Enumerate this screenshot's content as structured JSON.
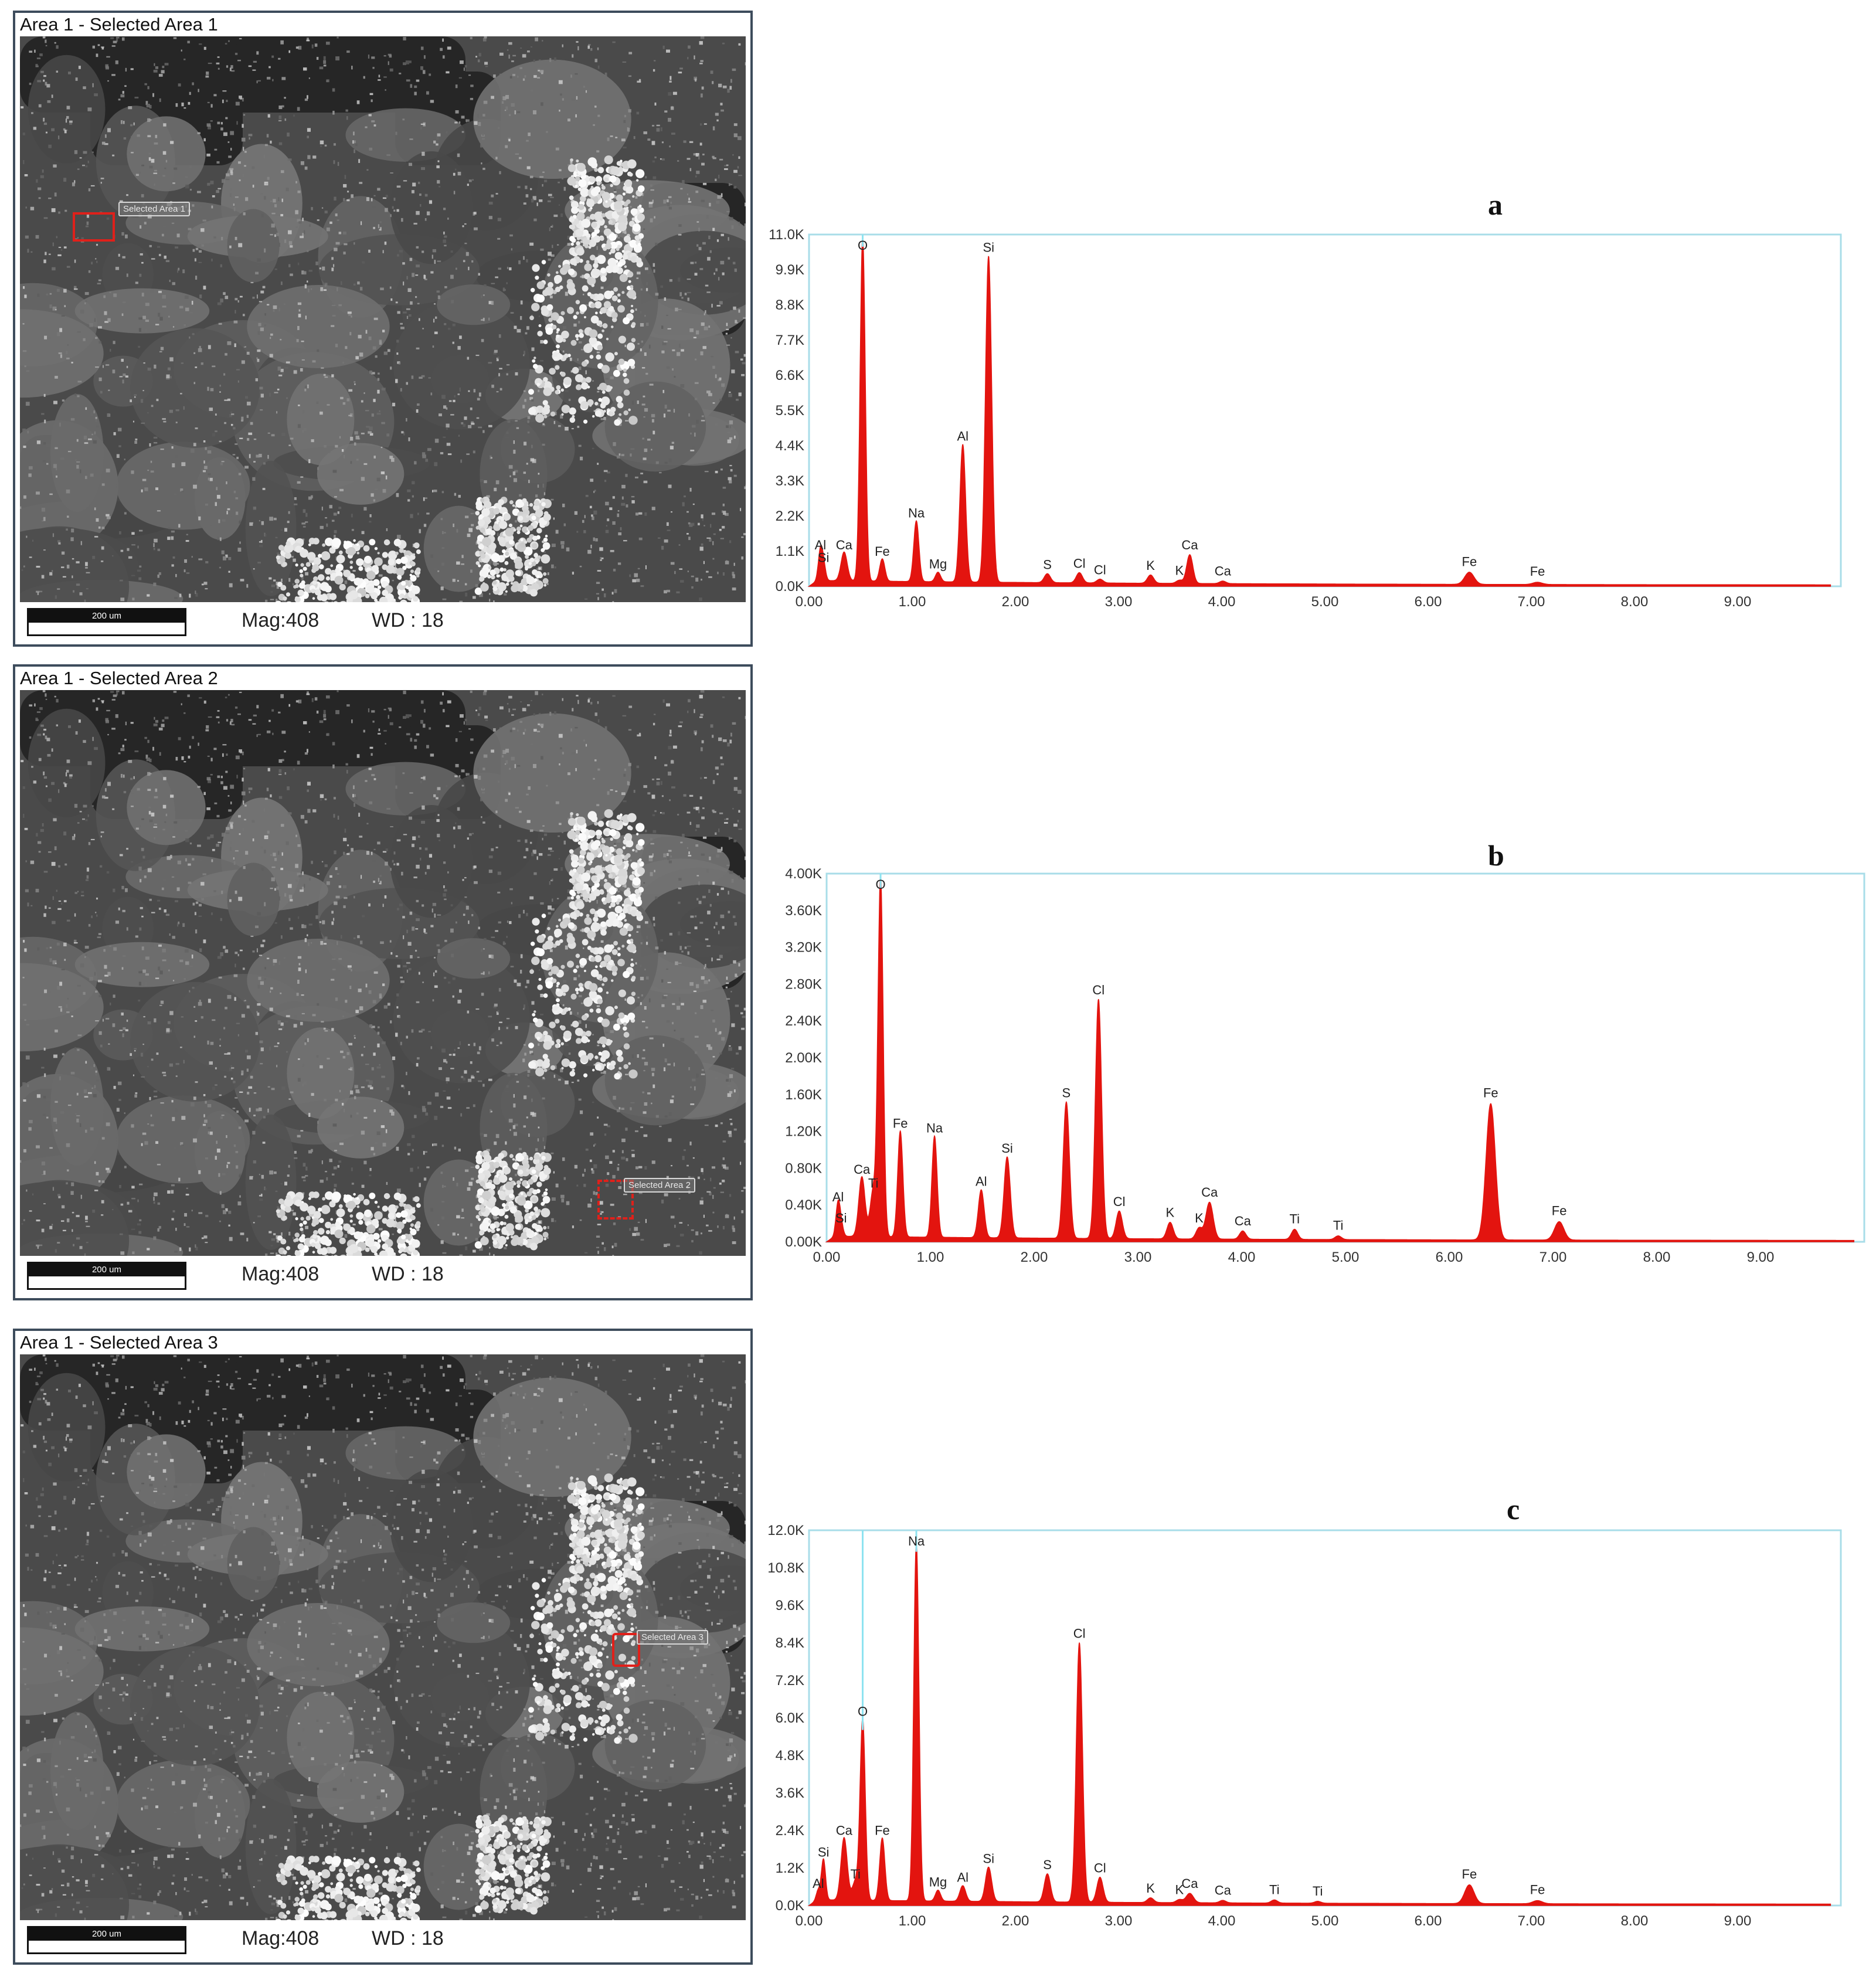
{
  "panels": [
    {
      "sem": {
        "title": "Area 1 - Selected Area 1",
        "scale_label": "200 um",
        "mag": "Mag:408",
        "wd": "WD : 18",
        "selection_label": "Selected Area 1"
      },
      "letter": "a"
    },
    {
      "sem": {
        "title": "Area 1 - Selected Area 2",
        "scale_label": "200 um",
        "mag": "Mag:408",
        "wd": "WD : 18",
        "selection_label": "Selected Area 2"
      },
      "letter": "b"
    },
    {
      "sem": {
        "title": "Area 1 - Selected Area 3",
        "scale_label": "200 um",
        "mag": "Mag:408",
        "wd": "WD : 18",
        "selection_label": "Selected Area 3"
      },
      "letter": "c"
    }
  ],
  "colors": {
    "spectrum_fill": "#e3140f",
    "marker_line": "#8ee3f0",
    "axis_border": "#a8dde8",
    "panel_border": "#3d4c5c"
  },
  "chart_data": [
    {
      "type": "area",
      "title": "a",
      "x_ticks": [
        "0.00",
        "1.00",
        "2.00",
        "3.00",
        "4.00",
        "5.00",
        "6.00",
        "7.00",
        "8.00",
        "9.00"
      ],
      "y_ticks": [
        "0.0K",
        "1.1K",
        "2.2K",
        "3.3K",
        "4.4K",
        "5.5K",
        "6.6K",
        "7.7K",
        "8.8K",
        "9.9K",
        "11.0K"
      ],
      "xlim": [
        0,
        10
      ],
      "ylim": [
        0,
        11000
      ],
      "baseline": 150,
      "peaks": [
        {
          "label": "O",
          "x": 0.52,
          "y": 10800,
          "w": 0.025,
          "line": true
        },
        {
          "label": "Si",
          "x": 1.74,
          "y": 10200,
          "w": 0.03
        },
        {
          "label": "Al",
          "x": 1.49,
          "y": 4300,
          "w": 0.028
        },
        {
          "label": "Na",
          "x": 1.04,
          "y": 1900,
          "w": 0.025
        },
        {
          "label": "Al",
          "x": 0.11,
          "y": 900,
          "w": 0.02
        },
        {
          "label": "Si",
          "x": 0.14,
          "y": 500,
          "w": 0.02
        },
        {
          "label": "Ca",
          "x": 0.34,
          "y": 900,
          "w": 0.03
        },
        {
          "label": "Fe",
          "x": 0.71,
          "y": 700,
          "w": 0.025
        },
        {
          "label": "Mg",
          "x": 1.25,
          "y": 300,
          "w": 0.025
        },
        {
          "label": "S",
          "x": 2.31,
          "y": 280,
          "w": 0.03
        },
        {
          "label": "Cl",
          "x": 2.62,
          "y": 320,
          "w": 0.03
        },
        {
          "label": "Cl",
          "x": 2.82,
          "y": 120,
          "w": 0.03
        },
        {
          "label": "K",
          "x": 3.31,
          "y": 260,
          "w": 0.03
        },
        {
          "label": "Ca",
          "x": 3.69,
          "y": 900,
          "w": 0.03
        },
        {
          "label": "K",
          "x": 3.59,
          "y": 100,
          "w": 0.03
        },
        {
          "label": "Ca",
          "x": 4.01,
          "y": 80,
          "w": 0.03
        },
        {
          "label": "Fe",
          "x": 6.4,
          "y": 380,
          "w": 0.045
        },
        {
          "label": "Fe",
          "x": 7.06,
          "y": 70,
          "w": 0.045
        }
      ]
    },
    {
      "type": "area",
      "title": "b",
      "x_ticks": [
        "0.00",
        "1.00",
        "2.00",
        "3.00",
        "4.00",
        "5.00",
        "6.00",
        "7.00",
        "8.00",
        "9.00"
      ],
      "y_ticks": [
        "0.00K",
        "0.40K",
        "0.80K",
        "1.20K",
        "1.60K",
        "2.00K",
        "2.40K",
        "2.80K",
        "3.20K",
        "3.60K",
        "4.00K"
      ],
      "xlim": [
        0,
        10
      ],
      "ylim": [
        0,
        4000
      ],
      "baseline": 50,
      "peaks": [
        {
          "label": "O",
          "x": 0.52,
          "y": 3900,
          "w": 0.025,
          "line": true
        },
        {
          "label": "Cl",
          "x": 2.62,
          "y": 2600,
          "w": 0.03
        },
        {
          "label": "S",
          "x": 2.31,
          "y": 1480,
          "w": 0.03
        },
        {
          "label": "Fe",
          "x": 6.4,
          "y": 1480,
          "w": 0.045
        },
        {
          "label": "Fe",
          "x": 0.71,
          "y": 1150,
          "w": 0.025
        },
        {
          "label": "Na",
          "x": 1.04,
          "y": 1100,
          "w": 0.025
        },
        {
          "label": "Si",
          "x": 1.74,
          "y": 880,
          "w": 0.03
        },
        {
          "label": "Al",
          "x": 1.49,
          "y": 520,
          "w": 0.028
        },
        {
          "label": "Al",
          "x": 0.11,
          "y": 350,
          "w": 0.02
        },
        {
          "label": "Si",
          "x": 0.14,
          "y": 120,
          "w": 0.02
        },
        {
          "label": "Ca",
          "x": 0.34,
          "y": 650,
          "w": 0.03
        },
        {
          "label": "Ti",
          "x": 0.45,
          "y": 500,
          "w": 0.03
        },
        {
          "label": "Cl",
          "x": 2.82,
          "y": 300,
          "w": 0.03
        },
        {
          "label": "K",
          "x": 3.31,
          "y": 180,
          "w": 0.03
        },
        {
          "label": "Ca",
          "x": 3.69,
          "y": 400,
          "w": 0.035
        },
        {
          "label": "K",
          "x": 3.59,
          "y": 120,
          "w": 0.03
        },
        {
          "label": "Ca",
          "x": 4.01,
          "y": 90,
          "w": 0.03
        },
        {
          "label": "Ti",
          "x": 4.51,
          "y": 110,
          "w": 0.03
        },
        {
          "label": "Ti",
          "x": 4.93,
          "y": 40,
          "w": 0.03
        },
        {
          "label": "Fe",
          "x": 7.06,
          "y": 200,
          "w": 0.045
        }
      ]
    },
    {
      "type": "area",
      "title": "c",
      "x_ticks": [
        "0.00",
        "1.00",
        "2.00",
        "3.00",
        "4.00",
        "5.00",
        "6.00",
        "7.00",
        "8.00",
        "9.00"
      ],
      "y_ticks": [
        "0.0K",
        "1.2K",
        "2.4K",
        "3.6K",
        "4.8K",
        "6.0K",
        "7.2K",
        "8.4K",
        "9.6K",
        "10.8K",
        "12.0K"
      ],
      "xlim": [
        0,
        10
      ],
      "ylim": [
        0,
        12000
      ],
      "baseline": 150,
      "peaks": [
        {
          "label": "Na",
          "x": 1.04,
          "y": 11500,
          "w": 0.025,
          "line": true
        },
        {
          "label": "Cl",
          "x": 2.62,
          "y": 8300,
          "w": 0.03
        },
        {
          "label": "O",
          "x": 0.52,
          "y": 5800,
          "w": 0.025,
          "line": true
        },
        {
          "label": "Ca",
          "x": 0.34,
          "y": 2000,
          "w": 0.03
        },
        {
          "label": "Fe",
          "x": 0.71,
          "y": 2000,
          "w": 0.025
        },
        {
          "label": "Si",
          "x": 0.14,
          "y": 1300,
          "w": 0.02
        },
        {
          "label": "Al",
          "x": 0.09,
          "y": 300,
          "w": 0.02
        },
        {
          "label": "Ti",
          "x": 0.45,
          "y": 600,
          "w": 0.03
        },
        {
          "label": "Mg",
          "x": 1.25,
          "y": 350,
          "w": 0.025
        },
        {
          "label": "Al",
          "x": 1.49,
          "y": 500,
          "w": 0.028
        },
        {
          "label": "Si",
          "x": 1.74,
          "y": 1100,
          "w": 0.03
        },
        {
          "label": "S",
          "x": 2.31,
          "y": 900,
          "w": 0.03
        },
        {
          "label": "Cl",
          "x": 2.82,
          "y": 800,
          "w": 0.03
        },
        {
          "label": "K",
          "x": 3.31,
          "y": 150,
          "w": 0.03
        },
        {
          "label": "Ca",
          "x": 3.69,
          "y": 300,
          "w": 0.035
        },
        {
          "label": "K",
          "x": 3.59,
          "y": 100,
          "w": 0.03
        },
        {
          "label": "Ca",
          "x": 4.01,
          "y": 80,
          "w": 0.03
        },
        {
          "label": "Ti",
          "x": 4.51,
          "y": 100,
          "w": 0.03
        },
        {
          "label": "Ti",
          "x": 4.93,
          "y": 60,
          "w": 0.03
        },
        {
          "label": "Fe",
          "x": 6.4,
          "y": 600,
          "w": 0.045
        },
        {
          "label": "Fe",
          "x": 7.06,
          "y": 100,
          "w": 0.045
        }
      ]
    }
  ]
}
